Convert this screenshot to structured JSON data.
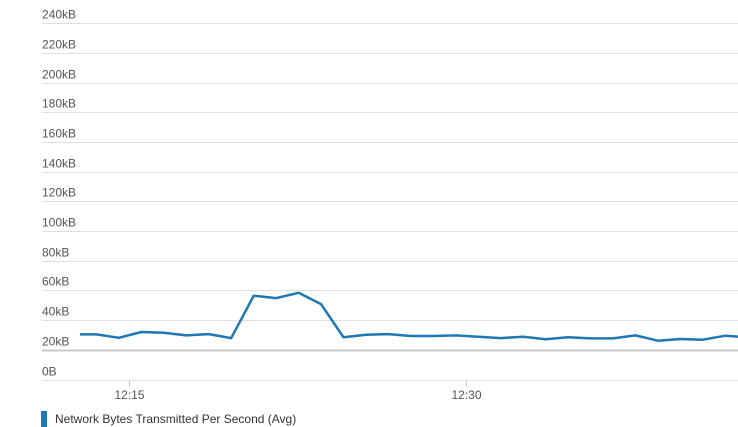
{
  "chart_data": {
    "type": "line",
    "title": "",
    "xlabel": "",
    "ylabel": "",
    "ylim": [
      0,
      240
    ],
    "y_unit": "kB",
    "y_ticks": [
      "0B",
      "20kB",
      "40kB",
      "60kB",
      "80kB",
      "100kB",
      "120kB",
      "140kB",
      "160kB",
      "180kB",
      "200kB",
      "220kB",
      "240kB"
    ],
    "x_ticks": [
      "12:15",
      "12:30"
    ],
    "xlim": [
      "12:12:48",
      "12:42:06"
    ],
    "grid": true,
    "legend": "bottom-left",
    "series": [
      {
        "name": "Network Bytes Transmitted Per Second (Avg)",
        "color": "#1f77b4",
        "x": [
          "12:12:32",
          "12:13:32",
          "12:14:32",
          "12:15:32",
          "12:16:32",
          "12:17:32",
          "12:18:32",
          "12:19:32",
          "12:20:32",
          "12:21:32",
          "12:22:32",
          "12:23:32",
          "12:24:32",
          "12:25:32",
          "12:26:32",
          "12:27:32",
          "12:28:32",
          "12:29:32",
          "12:30:32",
          "12:31:32",
          "12:32:32",
          "12:33:32",
          "12:34:32",
          "12:35:32",
          "12:36:32",
          "12:37:32",
          "12:38:32",
          "12:39:32",
          "12:40:32",
          "12:41:32",
          "12:42:32"
        ],
        "values": [
          30.4,
          30.4,
          28.1,
          32.0,
          31.5,
          29.7,
          30.6,
          27.9,
          56.4,
          54.8,
          58.4,
          50.8,
          28.4,
          30.2,
          30.6,
          29.3,
          29.3,
          29.7,
          28.8,
          27.9,
          28.8,
          27.1,
          28.4,
          27.7,
          27.7,
          29.7,
          26.1,
          27.3,
          26.8,
          29.5,
          28.4
        ]
      }
    ]
  }
}
